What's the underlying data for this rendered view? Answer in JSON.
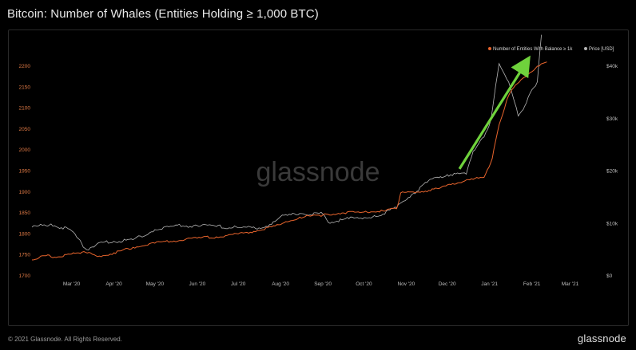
{
  "title": "Bitcoin: Number of Whales (Entities Holding ≥ 1,000 BTC)",
  "footer": {
    "copyright": "© 2021 Glassnode. All Rights Reserved.",
    "logo": "glassnode"
  },
  "watermark": "glassnode",
  "colors": {
    "whales": "#e8642c",
    "price": "#b5b5b5",
    "arrow": "#6fd23c"
  },
  "chart_data": {
    "type": "line",
    "x_ticks": [
      "Mar '20",
      "Apr '20",
      "May '20",
      "Jun '20",
      "Jul '20",
      "Aug '20",
      "Sep '20",
      "Oct '20",
      "Nov '20",
      "Dec '20",
      "Jan '21",
      "Feb '21",
      "Mar '21"
    ],
    "y_left": {
      "ticks": [
        "1700",
        "1750",
        "1800",
        "1850",
        "1900",
        "1950",
        "2000",
        "2050",
        "2100",
        "2150",
        "2200"
      ],
      "range": [
        1700,
        2200
      ]
    },
    "y_right": {
      "ticks": [
        "$0",
        "$10k",
        "$20k",
        "$30k",
        "$40k"
      ],
      "range": [
        0,
        40000
      ]
    },
    "legend": {
      "placement": "top-right",
      "items": [
        "Number of Entities With Balance ≥ 1k",
        "Price [USD]"
      ]
    },
    "series": [
      {
        "name": "Number of Entities With Balance ≥ 1k",
        "axis": "left",
        "points": [
          [
            "2020-02-01",
            1738
          ],
          [
            "2020-02-10",
            1748
          ],
          [
            "2020-02-20",
            1745
          ],
          [
            "2020-03-01",
            1752
          ],
          [
            "2020-03-10",
            1758
          ],
          [
            "2020-03-20",
            1746
          ],
          [
            "2020-04-01",
            1755
          ],
          [
            "2020-04-15",
            1768
          ],
          [
            "2020-05-01",
            1778
          ],
          [
            "2020-05-15",
            1783
          ],
          [
            "2020-06-01",
            1790
          ],
          [
            "2020-06-15",
            1793
          ],
          [
            "2020-07-01",
            1800
          ],
          [
            "2020-07-15",
            1808
          ],
          [
            "2020-08-01",
            1822
          ],
          [
            "2020-08-15",
            1840
          ],
          [
            "2020-09-01",
            1845
          ],
          [
            "2020-09-15",
            1850
          ],
          [
            "2020-10-01",
            1852
          ],
          [
            "2020-10-15",
            1855
          ],
          [
            "2020-10-25",
            1860
          ],
          [
            "2020-10-28",
            1898
          ],
          [
            "2020-11-10",
            1900
          ],
          [
            "2020-11-25",
            1908
          ],
          [
            "2020-12-05",
            1920
          ],
          [
            "2020-12-20",
            1930
          ],
          [
            "2020-12-28",
            1935
          ],
          [
            "2021-01-03",
            1980
          ],
          [
            "2021-01-08",
            2060
          ],
          [
            "2021-01-15",
            2130
          ],
          [
            "2021-01-20",
            2155
          ],
          [
            "2021-01-28",
            2175
          ],
          [
            "2021-02-05",
            2200
          ],
          [
            "2021-02-12",
            2210
          ]
        ]
      },
      {
        "name": "Price [USD]",
        "axis": "right",
        "points": [
          [
            "2020-02-01",
            9300
          ],
          [
            "2020-02-15",
            9900
          ],
          [
            "2020-03-01",
            8600
          ],
          [
            "2020-03-12",
            5000
          ],
          [
            "2020-03-20",
            6200
          ],
          [
            "2020-04-01",
            6600
          ],
          [
            "2020-04-15",
            6900
          ],
          [
            "2020-05-01",
            8800
          ],
          [
            "2020-05-15",
            9500
          ],
          [
            "2020-06-01",
            9600
          ],
          [
            "2020-06-15",
            9400
          ],
          [
            "2020-07-01",
            9200
          ],
          [
            "2020-07-20",
            9200
          ],
          [
            "2020-08-01",
            11300
          ],
          [
            "2020-08-15",
            11900
          ],
          [
            "2020-09-01",
            11800
          ],
          [
            "2020-09-05",
            10200
          ],
          [
            "2020-09-20",
            10900
          ],
          [
            "2020-10-10",
            11300
          ],
          [
            "2020-10-25",
            13000
          ],
          [
            "2020-11-05",
            15500
          ],
          [
            "2020-11-20",
            18500
          ],
          [
            "2020-12-01",
            19300
          ],
          [
            "2020-12-15",
            19400
          ],
          [
            "2020-12-20",
            23800
          ],
          [
            "2020-12-28",
            26500
          ],
          [
            "2021-01-02",
            29800
          ],
          [
            "2021-01-08",
            40500
          ],
          [
            "2021-01-15",
            37000
          ],
          [
            "2021-01-22",
            30500
          ],
          [
            "2021-01-28",
            33000
          ],
          [
            "2021-02-01",
            35500
          ],
          [
            "2021-02-05",
            37000
          ],
          [
            "2021-02-08",
            46000
          ]
        ]
      }
    ],
    "annotations": [
      {
        "type": "arrow",
        "from": [
          "2020-12-10",
          1955
        ],
        "to": [
          "2021-01-28",
          2210
        ]
      }
    ]
  }
}
